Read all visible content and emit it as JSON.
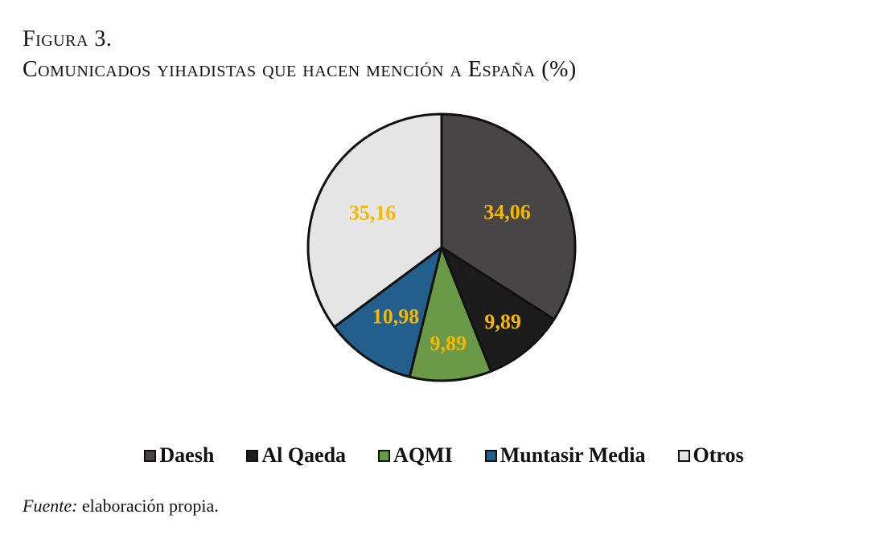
{
  "figure": {
    "label": "Figura 3.",
    "title": "Comunicados yihadistas que hacen mención a España (%)"
  },
  "chart_data": {
    "type": "pie",
    "title": "Comunicados yihadistas que hacen mención a España (%)",
    "start_angle_deg": 90,
    "direction": "clockwise",
    "categories": [
      "Daesh",
      "Al Qaeda",
      "AQMI",
      "Muntasir Media",
      "Otros"
    ],
    "values": [
      34.06,
      9.89,
      9.89,
      10.98,
      35.16
    ],
    "value_labels": [
      "34,06",
      "9,89",
      "9,89",
      "10,98",
      "35,16"
    ],
    "colors": [
      "#474546",
      "#1c1c1c",
      "#6a9a48",
      "#235f8d",
      "#e5e5e5"
    ],
    "label_color": "#f5b800",
    "legend_position": "bottom"
  },
  "source": {
    "prefix": "Fuente:",
    "text": " elaboración propia."
  }
}
